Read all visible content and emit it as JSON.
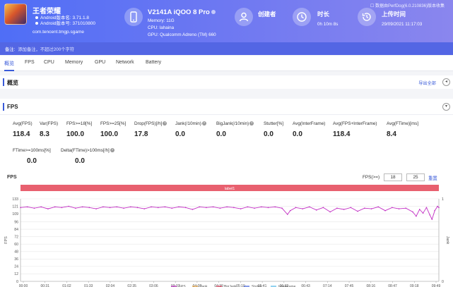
{
  "top_link": "☐ 数据由PerfDog(6.0.210836)版本收集",
  "app": {
    "name": "王者荣耀",
    "android_version_label": "Android版本名: 3.71.1.8",
    "android_code_label": "Android版本号: 371010800",
    "package": "com.tencent.tmgp.sgame"
  },
  "device": {
    "name": "V2141A iQOO 8 Pro",
    "memory": "Memory: 11G",
    "cpu": "CPU: lahaina",
    "gpu": "GPU: Qualcomm Adreno (TM) 660"
  },
  "creator": {
    "title": "创建者",
    "value": ""
  },
  "duration": {
    "title": "时长",
    "value": "0h 10m 8s"
  },
  "upload": {
    "title": "上传时间",
    "value": "29/09/2021 11:17:03"
  },
  "notes": {
    "label": "备注:",
    "placeholder": "添加备注，不超过200个字符"
  },
  "tabs": [
    "概览",
    "FPS",
    "CPU",
    "Memory",
    "GPU",
    "Network",
    "Battery"
  ],
  "overview": {
    "title": "概览",
    "export": "导出全部",
    "toggle": "◂"
  },
  "fps_section": {
    "title": "FPS",
    "toggle": "▾"
  },
  "metrics": [
    {
      "label": "Avg(FPS)",
      "value": "118.4",
      "info": false
    },
    {
      "label": "Var(FPS)",
      "value": "8.3",
      "info": false
    },
    {
      "label": "FPS>=18[%]",
      "value": "100.0",
      "info": false
    },
    {
      "label": "FPS>=25[%]",
      "value": "100.0",
      "info": false
    },
    {
      "label": "Drop(FPS)[/h]",
      "value": "17.8",
      "info": true
    },
    {
      "label": "Jank(/10min)",
      "value": "0.0",
      "info": true
    },
    {
      "label": "BigJank(/10min)",
      "value": "0.0",
      "info": true
    },
    {
      "label": "Stutter[%]",
      "value": "0.0",
      "info": false
    },
    {
      "label": "Avg(InterFrame)",
      "value": "0.0",
      "info": false
    },
    {
      "label": "Avg(FPS+InterFrame)",
      "value": "118.4",
      "info": false
    },
    {
      "label": "Avg(FTime)[ms]",
      "value": "8.4",
      "info": false
    },
    {
      "label": "FTime>=100ms[%]",
      "value": "0.0",
      "info": false
    },
    {
      "label": "Delta(FTime)>100ms[/h]",
      "value": "0.0",
      "info": true
    }
  ],
  "threshold": {
    "label": "FPS(>=)",
    "low": "18",
    "high": "25",
    "reset": "重置"
  },
  "colors": {
    "fps": "#c22fc4",
    "jank": "#e6a23c",
    "bigjank": "#e03c5a",
    "stutter": "#3a5bd9",
    "interframe": "#49b3e6",
    "label_band": "#e8606f"
  },
  "chart_data": {
    "type": "line",
    "title": "FPS",
    "xlabel": "",
    "ylabel": "FPS",
    "ylabel_right": "Jank",
    "label_band": "label1",
    "ylim": [
      0,
      133
    ],
    "yticks": [
      0,
      12,
      24,
      36,
      48,
      60,
      72,
      84,
      96,
      109,
      121,
      133
    ],
    "right_ticks": [
      0,
      1
    ],
    "xticks": [
      "00:00",
      "00:31",
      "01:02",
      "01:33",
      "02:04",
      "02:35",
      "03:06",
      "03:37",
      "04:08",
      "04:39",
      "05:10",
      "05:41",
      "06:12",
      "06:43",
      "07:14",
      "07:45",
      "08:16",
      "08:47",
      "09:18",
      "09:49"
    ],
    "duration_s": 608,
    "legend": [
      "FPS",
      "Jank",
      "BigJank",
      "Stutter",
      "InterFrame"
    ],
    "legend_position": "bottom",
    "series": [
      {
        "name": "FPS",
        "points": [
          [
            0,
            119
          ],
          [
            10,
            120
          ],
          [
            20,
            118
          ],
          [
            30,
            120
          ],
          [
            40,
            117
          ],
          [
            50,
            120
          ],
          [
            60,
            119
          ],
          [
            70,
            121
          ],
          [
            80,
            118
          ],
          [
            90,
            120
          ],
          [
            100,
            119
          ],
          [
            110,
            117
          ],
          [
            120,
            120
          ],
          [
            130,
            119
          ],
          [
            140,
            120
          ],
          [
            150,
            118
          ],
          [
            160,
            120
          ],
          [
            170,
            119
          ],
          [
            180,
            117
          ],
          [
            190,
            120
          ],
          [
            200,
            119
          ],
          [
            210,
            120
          ],
          [
            220,
            118
          ],
          [
            230,
            120
          ],
          [
            240,
            119
          ],
          [
            250,
            116
          ],
          [
            260,
            120
          ],
          [
            270,
            119
          ],
          [
            280,
            120
          ],
          [
            290,
            118
          ],
          [
            300,
            120
          ],
          [
            310,
            119
          ],
          [
            320,
            117
          ],
          [
            330,
            120
          ],
          [
            340,
            118
          ],
          [
            350,
            120
          ],
          [
            360,
            119
          ],
          [
            370,
            120
          ],
          [
            380,
            118
          ],
          [
            388,
            108
          ],
          [
            392,
            114
          ],
          [
            400,
            119
          ],
          [
            410,
            117
          ],
          [
            420,
            120
          ],
          [
            430,
            115
          ],
          [
            440,
            119
          ],
          [
            450,
            112
          ],
          [
            460,
            118
          ],
          [
            470,
            116
          ],
          [
            480,
            119
          ],
          [
            490,
            113
          ],
          [
            500,
            118
          ],
          [
            510,
            117
          ],
          [
            520,
            120
          ],
          [
            530,
            114
          ],
          [
            540,
            119
          ],
          [
            550,
            117
          ],
          [
            560,
            118
          ],
          [
            570,
            112
          ],
          [
            575,
            105
          ],
          [
            580,
            116
          ],
          [
            585,
            110
          ],
          [
            590,
            119
          ],
          [
            595,
            107
          ],
          [
            598,
            100
          ],
          [
            602,
            114
          ],
          [
            606,
            121
          ],
          [
            608,
            119
          ]
        ]
      }
    ]
  }
}
